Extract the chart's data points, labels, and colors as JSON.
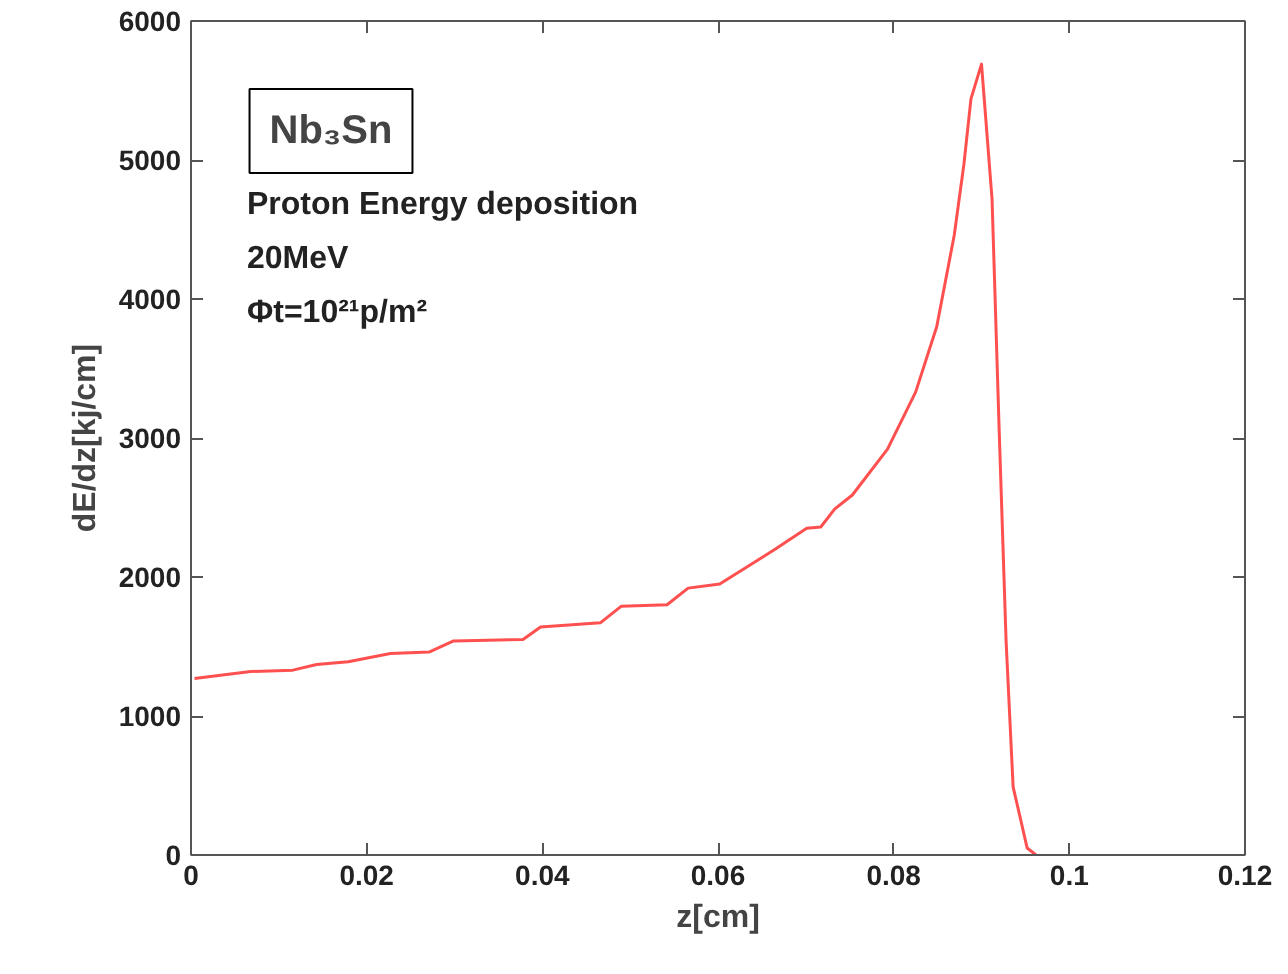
{
  "chart_data": {
    "type": "line",
    "xlabel": "z[cm]",
    "ylabel": "dE/dz[kj/cm]",
    "annotations": [
      "Nb₃Sn",
      "Proton Energy deposition",
      "20MeV",
      "Φt=10²¹p/m²"
    ],
    "xlim": [
      0,
      0.12
    ],
    "ylim": [
      0,
      6000
    ],
    "xticks": [
      0,
      0.02,
      0.04,
      0.06,
      0.08,
      0.1,
      0.12
    ],
    "yticks": [
      0,
      1000,
      2000,
      3000,
      4000,
      5000,
      6000
    ],
    "grid": false,
    "marker": "none",
    "line_style": "solid",
    "series": [
      {
        "color": "#ff5050",
        "x": [
          0.0004,
          0.0068,
          0.0116,
          0.0143,
          0.0179,
          0.0227,
          0.0271,
          0.0299,
          0.0378,
          0.0398,
          0.0466,
          0.049,
          0.0542,
          0.0566,
          0.0602,
          0.0665,
          0.0701,
          0.0717,
          0.0733,
          0.0753,
          0.0793,
          0.0825,
          0.0849,
          0.0869,
          0.088,
          0.0888,
          0.09,
          0.0912,
          0.092,
          0.0928,
          0.0936,
          0.0952,
          0.0962
        ],
        "values": [
          1270,
          1320,
          1330,
          1370,
          1390,
          1450,
          1460,
          1540,
          1550,
          1640,
          1670,
          1790,
          1800,
          1920,
          1950,
          2200,
          2350,
          2360,
          2490,
          2590,
          2920,
          3330,
          3800,
          4460,
          4970,
          5440,
          5690,
          4720,
          3080,
          1540,
          490,
          50,
          0
        ]
      }
    ]
  }
}
